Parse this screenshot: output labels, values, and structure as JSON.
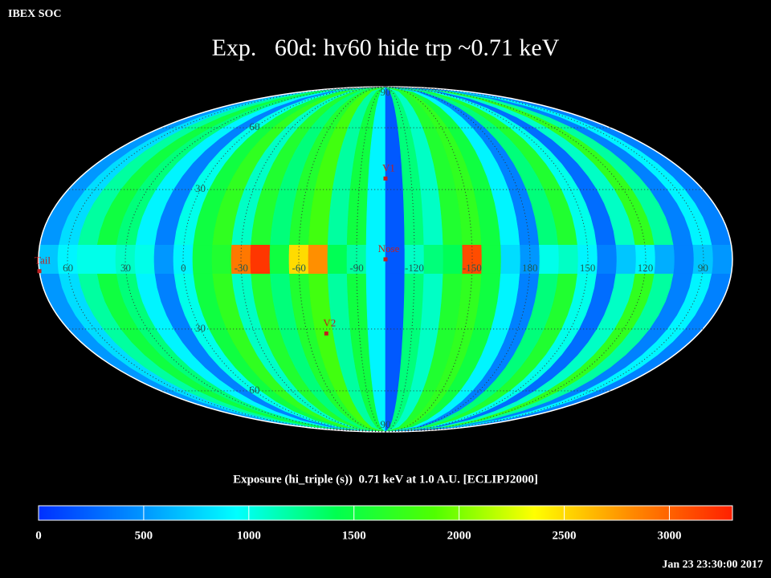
{
  "header": "IBEX SOC",
  "title": "Exp.   60d: hv60 hide trp ~0.71 keV",
  "map": {
    "projection": "mollweide",
    "center_lon": -105,
    "strip_lon": [
      70,
      60,
      50,
      40,
      30,
      20,
      10,
      0,
      -10,
      -20,
      -30,
      -40,
      -50,
      -60,
      -70,
      -80,
      -90,
      -100,
      -110,
      -120,
      -130,
      -140,
      -150,
      -160,
      -170,
      180,
      170,
      160,
      150,
      140,
      130,
      120,
      110,
      100,
      90,
      80
    ],
    "strip_values": [
      500,
      800,
      1200,
      1500,
      1300,
      900,
      400,
      1000,
      1500,
      1700,
      1100,
      1600,
      1300,
      1600,
      1800,
      1200,
      1500,
      900,
      200,
      1300,
      1100,
      1600,
      1700,
      1500,
      900,
      400,
      1300,
      1600,
      1000,
      300,
      1100,
      1700,
      1200,
      400,
      900,
      400
    ],
    "band_lat": [
      -6,
      6
    ],
    "band_values": [
      700,
      900,
      1000,
      1000,
      1100,
      1000,
      500,
      900,
      1500,
      1600,
      2900,
      3200,
      1500,
      2500,
      2800,
      1400,
      1200,
      900,
      200,
      1100,
      1300,
      1400,
      3100,
      1500,
      800,
      500,
      1000,
      1100,
      900,
      400,
      700,
      900,
      600,
      400,
      700,
      500
    ],
    "lon_labels": [
      60,
      30,
      0,
      -30,
      -60,
      -90,
      -120,
      -150,
      180,
      150,
      120,
      90
    ],
    "lat_labels": [
      90,
      60,
      30,
      {
        "value": -30,
        "label": "30"
      },
      {
        "value": -60,
        "label": "60"
      },
      {
        "value": -90,
        "label": "90"
      }
    ],
    "markers": [
      {
        "label": "V1",
        "lon": -105,
        "lat": 35
      },
      {
        "label": "Nose",
        "lon": -105,
        "lat": 0
      },
      {
        "label": "V2",
        "lon": -71,
        "lat": -32
      },
      {
        "label": "Tail",
        "lon": 75,
        "lat": -5
      }
    ]
  },
  "colorbar": {
    "title": "Exposure (hi_triple (s))  0.71 keV at 1.0 A.U. [ECLIPJ2000]",
    "limits": [
      0,
      3300
    ],
    "ticks": [
      0,
      500,
      1000,
      1500,
      2000,
      2500,
      3000
    ],
    "colors": [
      "#0030ff",
      "#0090ff",
      "#00ffff",
      "#00ff50",
      "#50ff00",
      "#ffff00",
      "#ff8800",
      "#ff2000"
    ]
  },
  "timestamp": "Jan 23 23:30:00 2017"
}
